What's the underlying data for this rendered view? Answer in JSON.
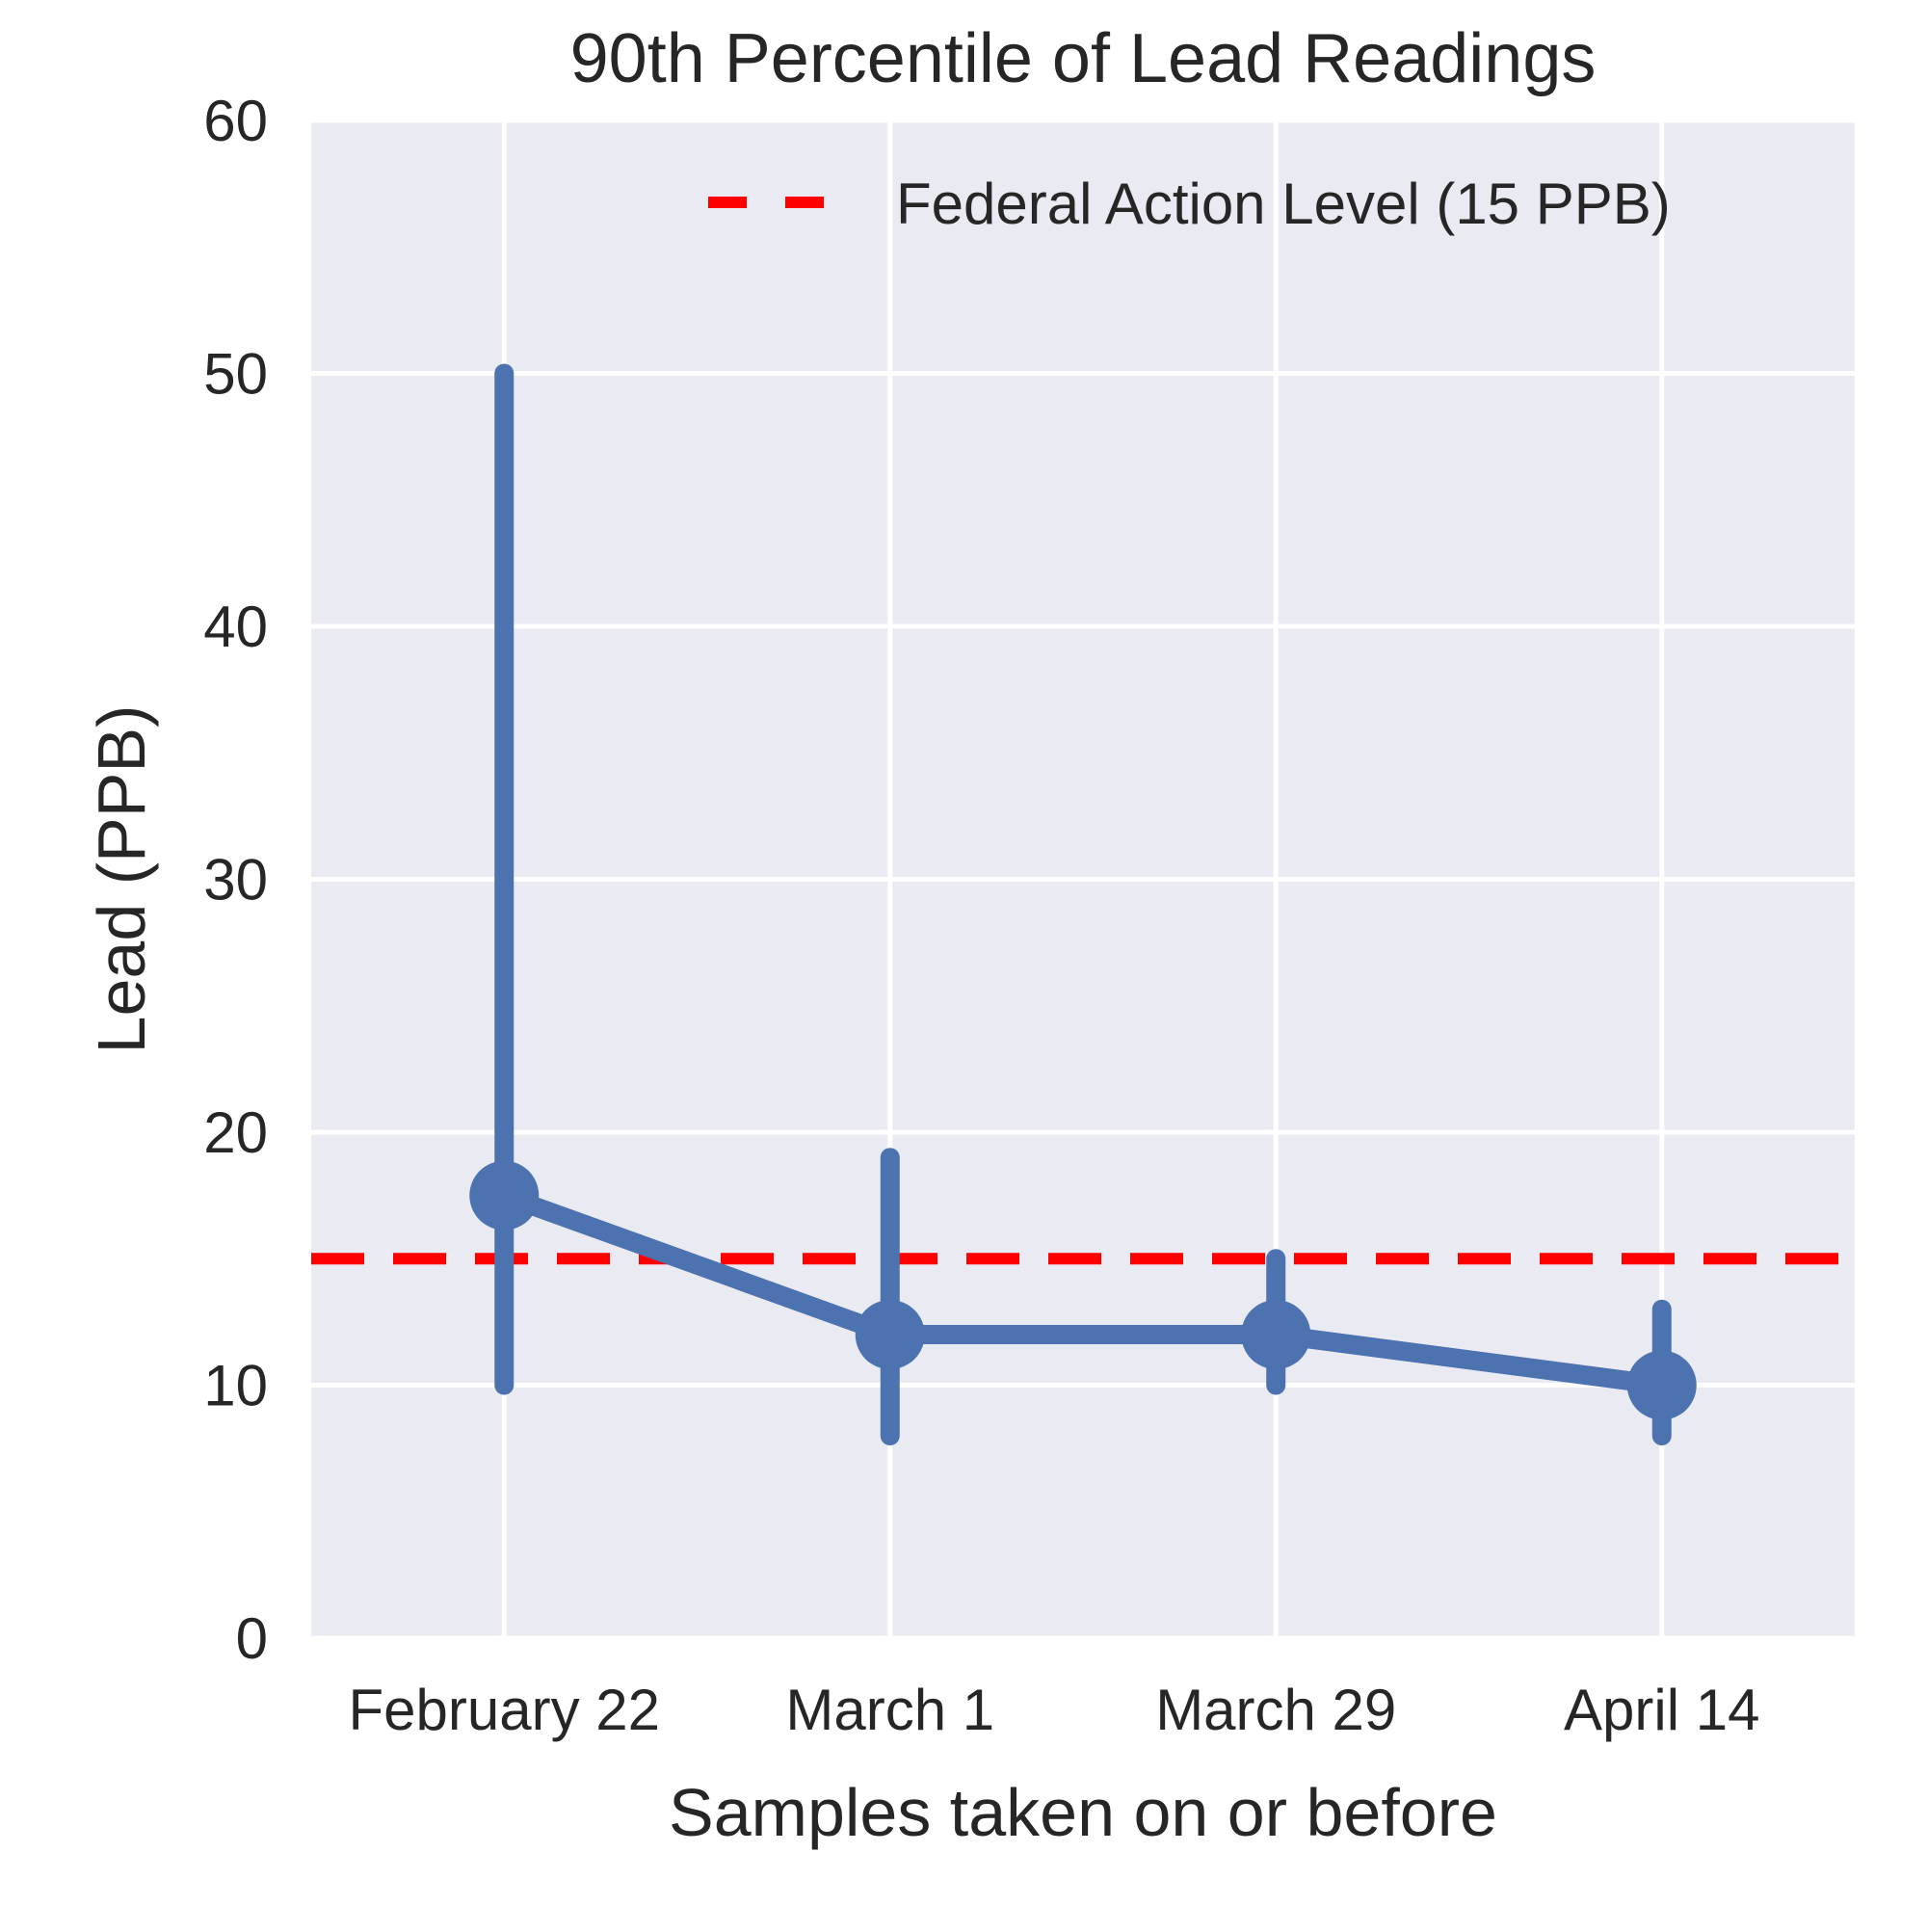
{
  "chart_data": {
    "type": "line",
    "title": "90th Percentile of Lead Readings",
    "xlabel": "Samples taken on or before",
    "ylabel": "Lead (PPB)",
    "categories": [
      "February 22",
      "March 1",
      "March 29",
      "April 14"
    ],
    "series": [
      {
        "values": [
          17.5,
          12.0,
          12.0,
          10.0
        ],
        "error_low": [
          10.0,
          8.0,
          10.0,
          8.0
        ],
        "error_high": [
          50.0,
          19.0,
          15.0,
          13.0
        ],
        "color": "#4c72b0"
      }
    ],
    "reference_lines": [
      {
        "label": "Federal Action Level (15 PPB)",
        "value": 15,
        "color": "#ff0000",
        "style": "dashed"
      }
    ],
    "ylim": [
      0,
      60
    ],
    "yticks": [
      0,
      10,
      20,
      30,
      40,
      50,
      60
    ],
    "grid": true,
    "legend_position": "top-right",
    "background_color": "#eaeaf2"
  }
}
